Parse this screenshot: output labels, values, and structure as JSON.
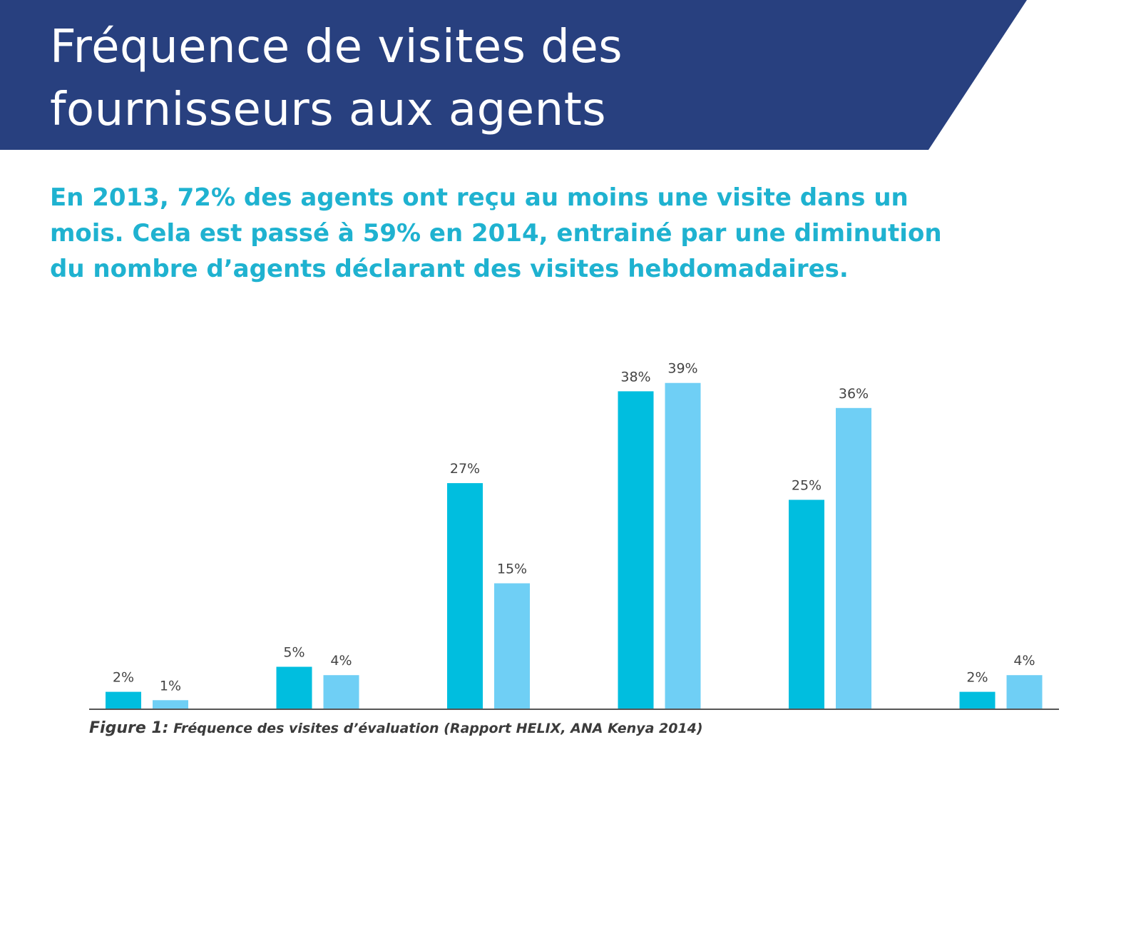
{
  "header": {
    "title_line1": "Fréquence de visites des",
    "title_line2": "fournisseurs aux agents",
    "banner_color": "#28407f"
  },
  "intro": {
    "line1": "En 2013, 72% des agents ont reçu au moins une visite dans un",
    "line2": "mois.  Cela est passé à 59% en 2014, entrainé par une diminution",
    "line3": "du nombre d’agents déclarant des visites hebdomadaires."
  },
  "chart_data": {
    "type": "bar",
    "title": "",
    "xlabel": "",
    "ylabel": "",
    "categories": [
      "",
      "",
      "",
      "",
      "",
      ""
    ],
    "series": [
      {
        "values": [
          2,
          5,
          27,
          38,
          25,
          2
        ],
        "color": "#00bedf"
      },
      {
        "values": [
          1,
          4,
          15,
          39,
          36,
          4
        ],
        "color": "#6fcff5"
      }
    ],
    "value_labels": [
      [
        "2%",
        "5%",
        "27%",
        "38%",
        "25%",
        "2%"
      ],
      [
        "1%",
        "4%",
        "15%",
        "39%",
        "36%",
        "4%"
      ]
    ],
    "ylim": [
      0,
      40
    ],
    "grid": false,
    "legend": "none"
  },
  "caption": {
    "label": "Figure 1:",
    "text": " Fréquence des visites d’évaluation (Rapport HELIX, ANA Kenya 2014)"
  }
}
